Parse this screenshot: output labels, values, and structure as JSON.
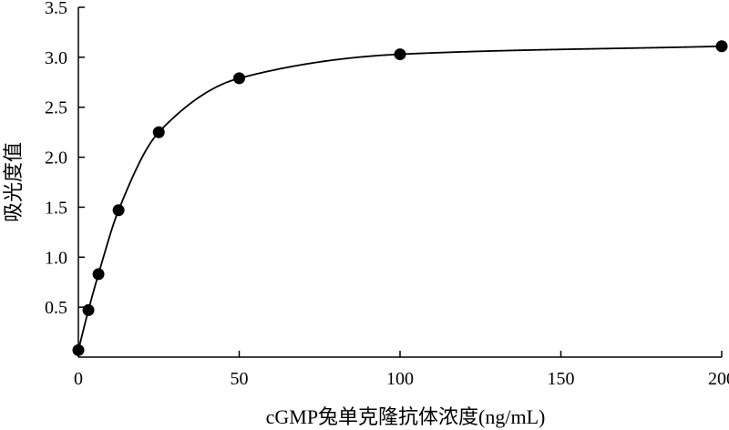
{
  "chart_data": {
    "type": "line",
    "xlabel": "cGMP兔单克隆抗体浓度(ng/mL)",
    "ylabel": "吸光度值",
    "xlim": [
      0,
      200
    ],
    "ylim": [
      0,
      3.5
    ],
    "xticks": [
      0,
      50,
      100,
      150,
      200
    ],
    "xtick_labels": [
      "0",
      "50",
      "100",
      "150",
      "200"
    ],
    "yticks": [
      0.5,
      1.0,
      1.5,
      2.0,
      2.5,
      3.0,
      3.5
    ],
    "ytick_labels": [
      "0.5",
      "1.0",
      "1.5",
      "2.0",
      "2.5",
      "3.0",
      "3.5"
    ],
    "grid": false,
    "series": [
      {
        "points": [
          {
            "x": 0,
            "y": 0.07
          },
          {
            "x": 3.125,
            "y": 0.47
          },
          {
            "x": 6.25,
            "y": 0.83
          },
          {
            "x": 12.5,
            "y": 1.47
          },
          {
            "x": 25,
            "y": 2.25
          },
          {
            "x": 50,
            "y": 2.79
          },
          {
            "x": 100,
            "y": 3.03
          },
          {
            "x": 200,
            "y": 3.11
          }
        ],
        "color": "#000000",
        "marker": "filled-circle"
      }
    ]
  }
}
